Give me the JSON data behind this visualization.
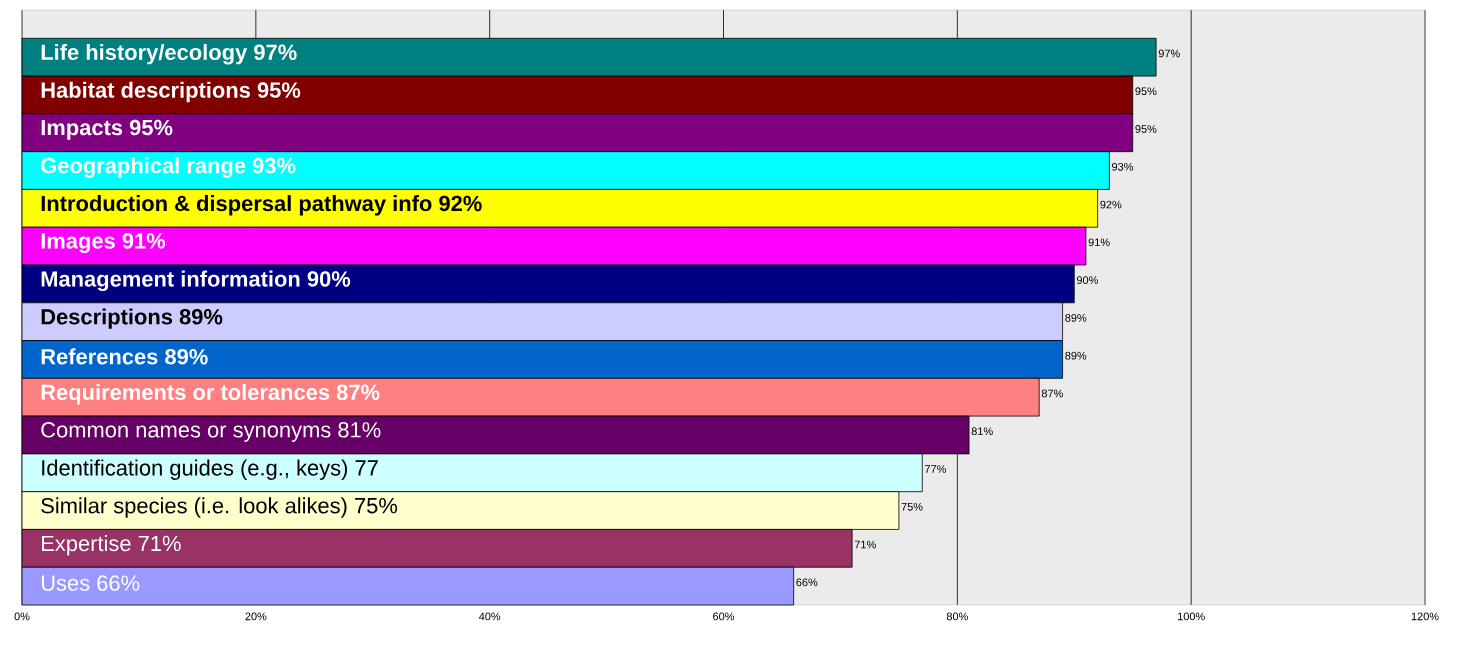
{
  "chart_data": {
    "type": "bar",
    "orientation": "horizontal",
    "categories": [
      "Life history/ecology   97%",
      "Habitat descriptions   95%",
      "Impacts   95%",
      "Geographical range   93%",
      "Introduction & dispersal pathway info   92%",
      "Images   91%",
      "Management information   90%",
      "Descriptions   89%",
      "References   89%",
      "Requirements or tolerances   87%",
      "Common names or synonyms   81%",
      "Identification guides (e.g., keys)   77",
      "Similar species (i.e. look alikes)   75%",
      "Expertise   71%",
      "Uses   66%"
    ],
    "values": [
      97,
      95,
      95,
      93,
      92,
      91,
      90,
      89,
      89,
      87,
      81,
      77,
      75,
      71,
      66
    ],
    "colors": [
      "#008080",
      "#800000",
      "#800080",
      "#00ffff",
      "#ffff00",
      "#ff00ff",
      "#000080",
      "#ccccff",
      "#0066cc",
      "#ff8080",
      "#660066",
      "#ccffff",
      "#ffffcc",
      "#993366",
      "#9999ff"
    ],
    "value_labels": [
      "97%",
      "95%",
      "95%",
      "93%",
      "92%",
      "91%",
      "90%",
      "89%",
      "89%",
      "87%",
      "81%",
      "77%",
      "75%",
      "71%",
      "66%"
    ],
    "xlim": [
      0,
      120
    ],
    "xticks": [
      {
        "value": 0,
        "label": "0%"
      },
      {
        "value": 20,
        "label": "20%"
      },
      {
        "value": 40,
        "label": "40%"
      },
      {
        "value": 60,
        "label": "60%"
      },
      {
        "value": 80,
        "label": "80%"
      },
      {
        "value": 100,
        "label": "100%"
      },
      {
        "value": 120,
        "label": "120%"
      }
    ],
    "grid": "x"
  }
}
